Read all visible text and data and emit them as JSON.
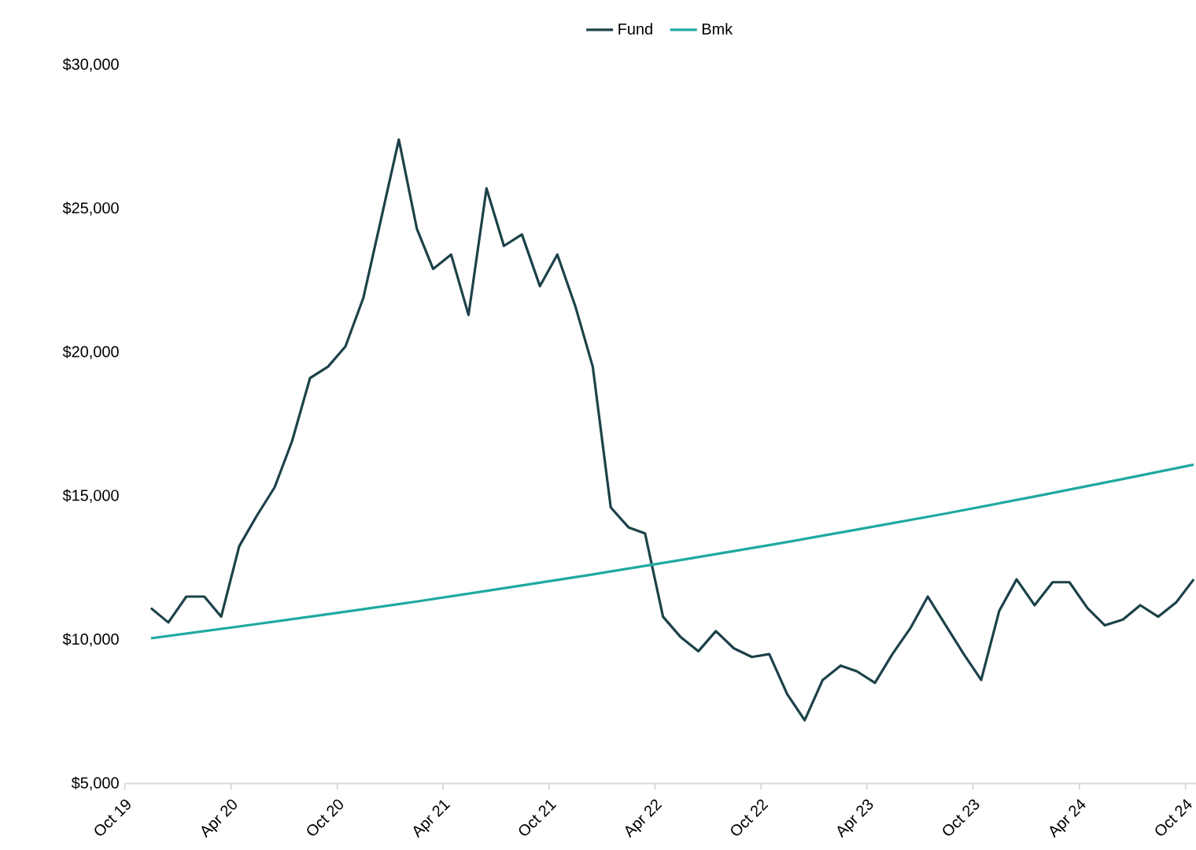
{
  "chart_data": {
    "type": "line",
    "x": [
      "2019-11-15",
      "2019-12-15",
      "2020-01-15",
      "2020-02-15",
      "2020-03-15",
      "2020-04-15",
      "2020-05-15",
      "2020-06-15",
      "2020-07-15",
      "2020-08-15",
      "2020-09-15",
      "2020-10-15",
      "2020-11-15",
      "2020-12-15",
      "2021-01-15",
      "2021-02-15",
      "2021-03-15",
      "2021-04-15",
      "2021-05-15",
      "2021-06-15",
      "2021-07-15",
      "2021-08-15",
      "2021-09-15",
      "2021-10-15",
      "2021-11-15",
      "2021-12-15",
      "2022-01-15",
      "2022-02-15",
      "2022-03-15",
      "2022-04-15",
      "2022-05-15",
      "2022-06-15",
      "2022-07-15",
      "2022-08-15",
      "2022-09-15",
      "2022-10-15",
      "2022-11-15",
      "2022-12-15",
      "2023-01-15",
      "2023-02-15",
      "2023-03-15",
      "2023-04-15",
      "2023-05-15",
      "2023-06-15",
      "2023-07-15",
      "2023-08-15",
      "2023-09-15",
      "2023-10-15",
      "2023-11-15",
      "2023-12-15",
      "2024-01-15",
      "2024-02-15",
      "2024-03-15",
      "2024-04-15",
      "2024-05-15",
      "2024-06-15",
      "2024-07-15",
      "2024-08-15",
      "2024-09-15",
      "2024-10-15"
    ],
    "series": [
      {
        "name": "Fund",
        "color": "#1c4249",
        "values": [
          11100,
          10600,
          11500,
          11500,
          10800,
          13250,
          14300,
          15300,
          16900,
          19100,
          19500,
          20200,
          21900,
          24600,
          27400,
          24300,
          22900,
          23400,
          21300,
          25700,
          23700,
          24100,
          22300,
          23400,
          21600,
          19500,
          14600,
          13900,
          13700,
          10800,
          10100,
          9600,
          10300,
          9700,
          9400,
          9500,
          8100,
          7200,
          8600,
          9100,
          8900,
          8500,
          9500,
          10400,
          11500,
          10500,
          9500,
          8600,
          11000,
          12100,
          11200,
          12000,
          12000,
          11100,
          10500,
          10700,
          11200,
          10800,
          11300,
          12100
        ]
      },
      {
        "name": "Bmk",
        "color": "#1fa9a0",
        "x": [
          "2019-11-15",
          "2020-04-15",
          "2020-09-15",
          "2021-02-15",
          "2021-07-15",
          "2021-12-15",
          "2022-05-15",
          "2022-10-15",
          "2023-03-15",
          "2023-08-15",
          "2024-01-15",
          "2024-06-15",
          "2024-10-15"
        ],
        "values": [
          10050,
          10460,
          10890,
          11330,
          11790,
          12270,
          12770,
          13290,
          13830,
          14390,
          14980,
          15590,
          16090
        ]
      }
    ],
    "xlim": [
      "2019-10-01",
      "2024-10-19"
    ],
    "xticks": [
      {
        "value": "2019-10",
        "label": "Oct 19"
      },
      {
        "value": "2020-04",
        "label": "Apr 20"
      },
      {
        "value": "2020-10",
        "label": "Oct 20"
      },
      {
        "value": "2021-04",
        "label": "Apr 21"
      },
      {
        "value": "2021-10",
        "label": "Oct 21"
      },
      {
        "value": "2022-04",
        "label": "Apr 22"
      },
      {
        "value": "2022-10",
        "label": "Oct 22"
      },
      {
        "value": "2023-04",
        "label": "Apr 23"
      },
      {
        "value": "2023-10",
        "label": "Oct 23"
      },
      {
        "value": "2024-04",
        "label": "Apr 24"
      },
      {
        "value": "2024-10",
        "label": "Oct 24"
      }
    ],
    "ylim": [
      5000,
      30000
    ],
    "yticks": [
      {
        "value": 5000,
        "label": "$5,000"
      },
      {
        "value": 10000,
        "label": "$10,000"
      },
      {
        "value": 15000,
        "label": "$15,000"
      },
      {
        "value": 20000,
        "label": "$20,000"
      },
      {
        "value": 25000,
        "label": "$25,000"
      },
      {
        "value": 30000,
        "label": "$30,000"
      }
    ],
    "legend": "top",
    "grid": false,
    "marker": "none",
    "line_style": "solid"
  }
}
